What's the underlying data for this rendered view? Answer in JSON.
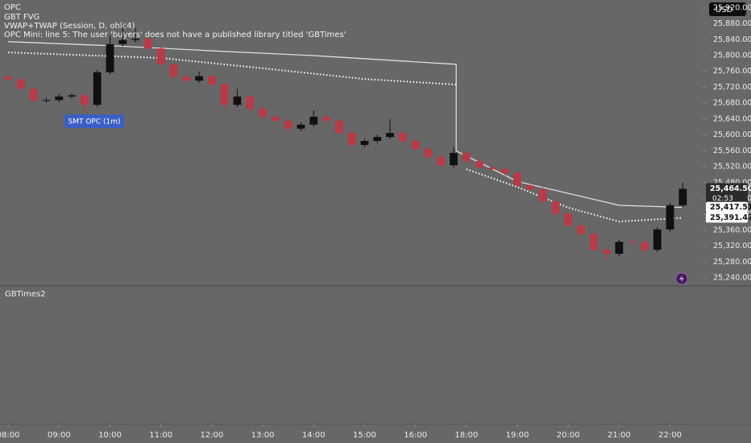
{
  "header": {
    "indicators": [
      "OPC",
      "GBT FVG",
      "VWAP+TWAP (Session, D, ohlc4)",
      "OPC Mini: line 5: The user 'buyers' does not have a published library titled 'GBTimes'"
    ],
    "currency": "USD"
  },
  "annotation": "SMT OPC (1m)",
  "pane_title": "GBTimes2",
  "chart_data": {
    "type": "candlestick",
    "xlim": [
      -0.16,
      13.64
    ],
    "ylim": [
      25226,
      25940
    ],
    "xticks": [
      {
        "value": 0,
        "label": "08:00"
      },
      {
        "value": 1,
        "label": "09:00"
      },
      {
        "value": 2,
        "label": "10:00"
      },
      {
        "value": 3,
        "label": "11:00"
      },
      {
        "value": 4,
        "label": "12:00"
      },
      {
        "value": 5,
        "label": "13:00"
      },
      {
        "value": 6,
        "label": "14:00"
      },
      {
        "value": 7,
        "label": "15:00"
      },
      {
        "value": 8,
        "label": "16:00"
      },
      {
        "value": 9,
        "label": "18:00"
      },
      {
        "value": 10,
        "label": "19:00"
      },
      {
        "value": 11,
        "label": "20:00"
      },
      {
        "value": 12,
        "label": "21:00"
      },
      {
        "value": 13,
        "label": "22:00"
      }
    ],
    "yticks": [
      {
        "value": 25240,
        "label": "25,240.00"
      },
      {
        "value": 25280,
        "label": "25,280.00"
      },
      {
        "value": 25320,
        "label": "25,320.00"
      },
      {
        "value": 25360,
        "label": "25,360.00"
      },
      {
        "value": 25400,
        "label": "25,400.00"
      },
      {
        "value": 25440,
        "label": "25,440.00"
      },
      {
        "value": 25480,
        "label": "25,480.00"
      },
      {
        "value": 25520,
        "label": "25,520.00"
      },
      {
        "value": 25560,
        "label": "25,560.00"
      },
      {
        "value": 25600,
        "label": "25,600.00"
      },
      {
        "value": 25640,
        "label": "25,640.00"
      },
      {
        "value": 25680,
        "label": "25,680.00"
      },
      {
        "value": 25720,
        "label": "25,720.00"
      },
      {
        "value": 25760,
        "label": "25,760.00"
      },
      {
        "value": 25800,
        "label": "25,800.00"
      },
      {
        "value": 25840,
        "label": "25,840.00"
      },
      {
        "value": 25880,
        "label": "25,880.00"
      },
      {
        "value": 25920,
        "label": "25,920.00"
      }
    ],
    "up_color": "#101010",
    "down_color": "#b83a48",
    "x": [
      0,
      0.25,
      0.5,
      0.75,
      1,
      1.25,
      1.5,
      1.75,
      2,
      2.25,
      2.5,
      2.75,
      3,
      3.25,
      3.5,
      3.75,
      4,
      4.25,
      4.5,
      4.75,
      5,
      5.25,
      5.5,
      5.75,
      6,
      6.25,
      6.5,
      6.75,
      7,
      7.25,
      7.5,
      7.75,
      8,
      8.25,
      8.5,
      8.75,
      9,
      9.25,
      9.5,
      9.75,
      10,
      10.25,
      10.5,
      10.75,
      11,
      11.25,
      11.5,
      11.75,
      12,
      12.25,
      12.5,
      12.75,
      13,
      13.25
    ],
    "open": [
      25747,
      25740,
      25717,
      25687,
      25688,
      25697,
      25700,
      25676,
      25758,
      25829,
      25839,
      25842,
      25818,
      25778,
      25747,
      25737,
      25748,
      25727,
      25676,
      25697,
      25666,
      25646,
      25636,
      25616,
      25626,
      25646,
      25636,
      25605,
      25575,
      25585,
      25595,
      25605,
      25585,
      25565,
      25544,
      25524,
      25555,
      25534,
      25518,
      25514,
      25504,
      25473,
      25463,
      25433,
      25402,
      25372,
      25351,
      25311,
      25301,
      25331,
      25330,
      25311,
      25362,
      25423
    ],
    "high": [
      25753,
      25746,
      25723,
      25694,
      25703,
      25706,
      25706,
      25764,
      25850,
      25880,
      25870,
      25848,
      25824,
      25784,
      25753,
      25760,
      25754,
      25733,
      25716,
      25703,
      25672,
      25652,
      25642,
      25632,
      25662,
      25652,
      25642,
      25611,
      25591,
      25601,
      25640,
      25611,
      25591,
      25571,
      25550,
      25570,
      25561,
      25540,
      25524,
      25520,
      25510,
      25479,
      25469,
      25439,
      25408,
      25378,
      25357,
      25317,
      25337,
      25337,
      25336,
      25368,
      25429,
      25480
    ],
    "low": [
      25734,
      25711,
      25681,
      25681,
      25682,
      25691,
      25656,
      25670,
      25752,
      25823,
      25833,
      25812,
      25772,
      25741,
      25731,
      25731,
      25721,
      25660,
      25670,
      25660,
      25640,
      25630,
      25606,
      25610,
      25620,
      25630,
      25599,
      25569,
      25569,
      25579,
      25589,
      25579,
      25559,
      25538,
      25518,
      25518,
      25528,
      25512,
      25508,
      25498,
      25467,
      25457,
      25427,
      25396,
      25366,
      25345,
      25305,
      25285,
      25295,
      25324,
      25305,
      25305,
      25356,
      25417
    ],
    "close": [
      25740,
      25717,
      25687,
      25688,
      25697,
      25700,
      25676,
      25758,
      25829,
      25839,
      25842,
      25818,
      25778,
      25747,
      25737,
      25748,
      25727,
      25676,
      25697,
      25666,
      25646,
      25636,
      25616,
      25626,
      25646,
      25636,
      25605,
      25575,
      25585,
      25595,
      25605,
      25585,
      25565,
      25544,
      25524,
      25555,
      25534,
      25518,
      25514,
      25504,
      25473,
      25463,
      25433,
      25402,
      25372,
      25351,
      25311,
      25301,
      25331,
      25330,
      25311,
      25362,
      25423,
      25464.5
    ],
    "lines": [
      {
        "color": "#e6e6e6",
        "dashed": false,
        "x": [
          0,
          2,
          4,
          6,
          8.8,
          8.8,
          10,
          11,
          12,
          13.25
        ],
        "values": [
          25835,
          25825,
          25812,
          25800,
          25778,
          25560,
          25483,
          25453,
          25423,
          25417.51
        ]
      },
      {
        "color": "#ffffff",
        "dashed": true,
        "x": [
          0,
          3,
          5,
          7,
          8.8,
          8.9,
          9,
          10,
          11,
          12,
          13.25
        ],
        "values": [
          25808,
          25794,
          25768,
          25741,
          25727,
          null,
          25514,
          25469,
          25417,
          25382,
          25391.47
        ]
      }
    ],
    "price_labels": [
      {
        "value": 25464.5,
        "label": "25,464.50",
        "bg": "#2b2b2b",
        "fg": "#ffffff"
      },
      {
        "value": 25417.51,
        "label": "25,417.51",
        "bg": "#ffffff",
        "fg": "#111111"
      },
      {
        "value": 25391.47,
        "label": "25,391.47",
        "bg": "#ffffff",
        "fg": "#111111"
      }
    ],
    "countdown": "02:53"
  }
}
